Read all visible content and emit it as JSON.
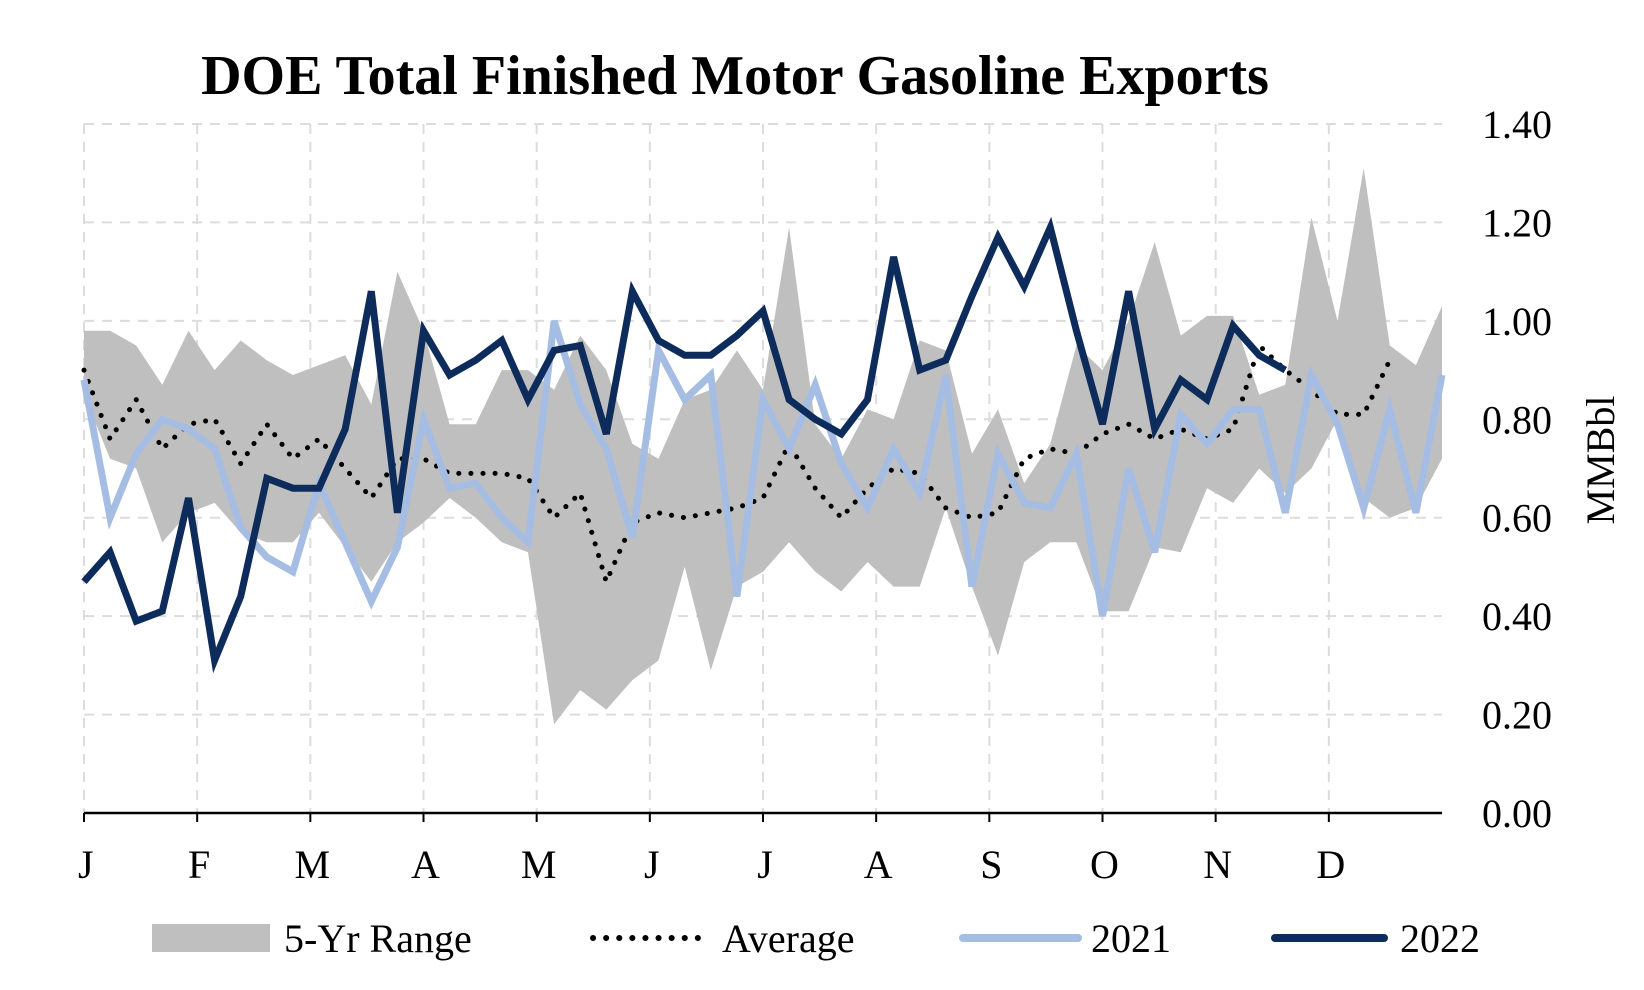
{
  "chart_data": {
    "type": "line",
    "title": "DOE Total Finished Motor Gasoline Exports",
    "ylabel": "MMBbl",
    "xlabel": "",
    "ylim": [
      0,
      1.4
    ],
    "yticks": [
      "0.00",
      "0.20",
      "0.40",
      "0.60",
      "0.80",
      "1.00",
      "1.20",
      "1.40"
    ],
    "y_axis_side": "right",
    "grid": true,
    "legend_position": "bottom",
    "month_labels": [
      "J",
      "F",
      "M",
      "A",
      "M",
      "J",
      "J",
      "A",
      "S",
      "O",
      "N",
      "D"
    ],
    "week_count": 52,
    "range": {
      "name": "5-Yr Range",
      "color": "#bfbfbf",
      "max": [
        0.98,
        0.98,
        0.95,
        0.87,
        0.98,
        0.9,
        0.96,
        0.92,
        0.89,
        0.91,
        0.93,
        0.83,
        1.1,
        0.98,
        0.79,
        0.79,
        0.9,
        0.9,
        0.86,
        0.97,
        0.9,
        0.75,
        0.72,
        0.84,
        0.86,
        0.94,
        0.86,
        1.19,
        0.79,
        0.72,
        0.82,
        0.8,
        0.96,
        0.94,
        0.73,
        0.82,
        0.67,
        0.75,
        0.95,
        0.9,
        1.0,
        1.16,
        0.97,
        1.01,
        1.01,
        0.85,
        0.87,
        1.21,
        1.0,
        1.31,
        0.95,
        0.91,
        1.03
      ],
      "min": [
        0.85,
        0.72,
        0.7,
        0.55,
        0.61,
        0.63,
        0.57,
        0.55,
        0.55,
        0.61,
        0.54,
        0.47,
        0.55,
        0.59,
        0.64,
        0.6,
        0.55,
        0.53,
        0.18,
        0.25,
        0.21,
        0.27,
        0.31,
        0.5,
        0.29,
        0.46,
        0.49,
        0.55,
        0.49,
        0.45,
        0.51,
        0.46,
        0.46,
        0.62,
        0.46,
        0.32,
        0.51,
        0.55,
        0.55,
        0.41,
        0.41,
        0.54,
        0.53,
        0.66,
        0.63,
        0.7,
        0.65,
        0.7,
        0.8,
        0.64,
        0.6,
        0.62,
        0.72
      ]
    },
    "series": [
      {
        "name": "Average",
        "color": "#000000",
        "style": "dotted",
        "values": [
          0.9,
          0.76,
          0.84,
          0.74,
          0.79,
          0.8,
          0.71,
          0.79,
          0.72,
          0.76,
          0.7,
          0.64,
          0.72,
          0.72,
          0.69,
          0.69,
          0.69,
          0.68,
          0.6,
          0.65,
          0.47,
          0.59,
          0.61,
          0.6,
          0.61,
          0.62,
          0.64,
          0.75,
          0.66,
          0.6,
          0.66,
          0.7,
          0.69,
          0.62,
          0.6,
          0.61,
          0.72,
          0.74,
          0.73,
          0.77,
          0.79,
          0.76,
          0.78,
          0.76,
          0.78,
          0.95,
          0.9,
          0.86,
          0.81,
          0.81,
          0.92
        ]
      },
      {
        "name": "2021",
        "color": "#a6bde3",
        "style": "solid",
        "values": [
          0.88,
          0.6,
          0.73,
          0.8,
          0.78,
          0.74,
          0.58,
          0.52,
          0.49,
          0.67,
          0.55,
          0.43,
          0.54,
          0.8,
          0.66,
          0.67,
          0.6,
          0.55,
          1.0,
          0.83,
          0.74,
          0.56,
          0.94,
          0.84,
          0.89,
          0.44,
          0.84,
          0.74,
          0.87,
          0.71,
          0.62,
          0.74,
          0.65,
          0.89,
          0.46,
          0.73,
          0.63,
          0.62,
          0.73,
          0.4,
          0.7,
          0.53,
          0.81,
          0.75,
          0.82,
          0.82,
          0.61,
          0.89,
          0.79,
          0.62,
          0.82,
          0.61,
          0.89
        ]
      },
      {
        "name": "2022",
        "color": "#0d2c5c",
        "style": "solid",
        "values": [
          0.47,
          0.53,
          0.39,
          0.41,
          0.64,
          0.31,
          0.44,
          0.68,
          0.66,
          0.66,
          0.78,
          1.06,
          0.61,
          0.98,
          0.89,
          0.92,
          0.96,
          0.84,
          0.94,
          0.95,
          0.77,
          1.06,
          0.96,
          0.93,
          0.93,
          0.97,
          1.02,
          0.84,
          0.8,
          0.77,
          0.84,
          1.13,
          0.9,
          0.92,
          1.05,
          1.17,
          1.07,
          1.19,
          0.98,
          0.79,
          1.06,
          0.78,
          0.88,
          0.84,
          0.99,
          0.93,
          0.9
        ]
      }
    ]
  }
}
